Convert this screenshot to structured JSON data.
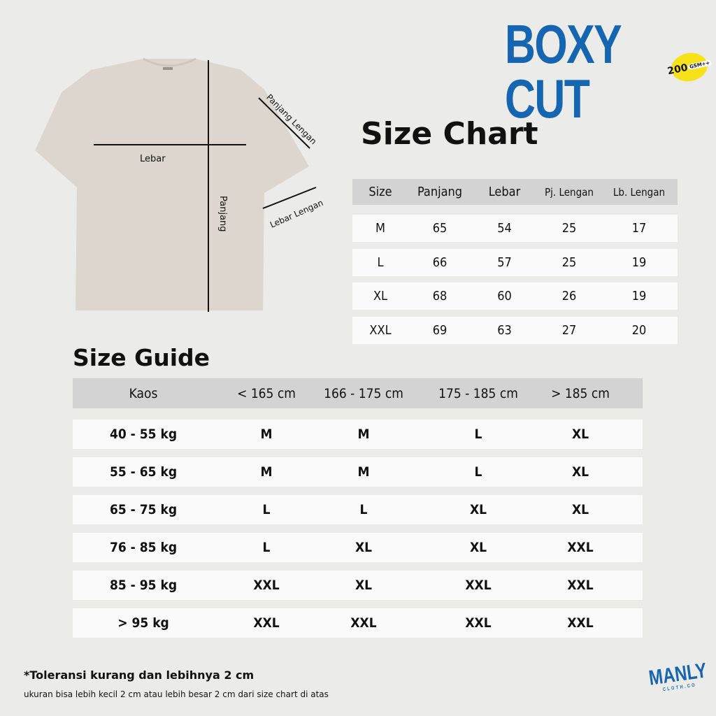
{
  "brand": {
    "title": "BOXY CUT",
    "badge_number": "200",
    "badge_unit": "GSM++",
    "logo": "MANLY",
    "logo_sub": "CLOTH.CO",
    "accent": "#1665b0"
  },
  "diagram": {
    "lebar": "Lebar",
    "panjang": "Panjang",
    "panjang_lengan": "Panjang Lengan",
    "lebar_lengan": "Lebar Lengan",
    "shirt_color": "#ddd6cf"
  },
  "size_chart": {
    "title": "Size Chart",
    "headers": [
      "Size",
      "Panjang",
      "Lebar",
      "Pj. Lengan",
      "Lb. Lengan"
    ],
    "rows": [
      [
        "M",
        "65",
        "54",
        "25",
        "17"
      ],
      [
        "L",
        "66",
        "57",
        "25",
        "19"
      ],
      [
        "XL",
        "68",
        "60",
        "26",
        "19"
      ],
      [
        "XXL",
        "69",
        "63",
        "27",
        "20"
      ]
    ]
  },
  "size_guide": {
    "title": "Size Guide",
    "headers": [
      "Kaos",
      "< 165 cm",
      "166 - 175 cm",
      "175 - 185 cm",
      "> 185 cm"
    ],
    "rows": [
      [
        "40 - 55 kg",
        "M",
        "M",
        "L",
        "XL"
      ],
      [
        "55 - 65 kg",
        "M",
        "M",
        "L",
        "XL"
      ],
      [
        "65 - 75 kg",
        "L",
        "L",
        "XL",
        "XL"
      ],
      [
        "76 - 85 kg",
        "L",
        "XL",
        "XL",
        "XXL"
      ],
      [
        "85 - 95 kg",
        "XXL",
        "XL",
        "XXL",
        "XXL"
      ],
      [
        "> 95 kg",
        "XXL",
        "XXL",
        "XXL",
        "XXL"
      ]
    ]
  },
  "notes": {
    "tolerance": "*Toleransi kurang dan lebihnya 2 cm",
    "detail": "ukuran bisa lebih kecil 2 cm atau lebih besar 2 cm dari size chart di atas"
  }
}
